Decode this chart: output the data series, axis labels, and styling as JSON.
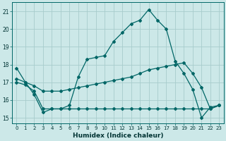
{
  "title": "",
  "xlabel": "Humidex (Indice chaleur)",
  "ylabel": "",
  "bg_color": "#cce8e8",
  "grid_color": "#a8cccc",
  "line_color": "#006666",
  "ylim": [
    14.7,
    21.5
  ],
  "xlim": [
    -0.5,
    23.5
  ],
  "yticks": [
    15,
    16,
    17,
    18,
    19,
    20,
    21
  ],
  "xticks": [
    0,
    1,
    2,
    3,
    4,
    5,
    6,
    7,
    8,
    9,
    10,
    11,
    12,
    13,
    14,
    15,
    16,
    17,
    18,
    19,
    20,
    21,
    22,
    23
  ],
  "line1_x": [
    0,
    1,
    2,
    3,
    4,
    5,
    6,
    7,
    8,
    9,
    10,
    11,
    12,
    13,
    14,
    15,
    16,
    17,
    18,
    19,
    20,
    21,
    22,
    23
  ],
  "line1_y": [
    17.8,
    17.0,
    16.3,
    15.3,
    15.5,
    15.5,
    15.7,
    17.3,
    18.3,
    18.4,
    18.5,
    19.3,
    19.8,
    20.3,
    20.5,
    21.1,
    20.5,
    20.0,
    18.2,
    17.5,
    16.6,
    15.0,
    15.6,
    15.7
  ],
  "line2_x": [
    0,
    1,
    2,
    3,
    4,
    5,
    6,
    7,
    8,
    9,
    10,
    11,
    12,
    13,
    14,
    15,
    16,
    17,
    18,
    19,
    20,
    21,
    22,
    23
  ],
  "line2_y": [
    17.0,
    16.85,
    16.5,
    15.5,
    15.5,
    15.5,
    15.5,
    15.5,
    15.5,
    15.5,
    15.5,
    15.5,
    15.5,
    15.5,
    15.5,
    15.5,
    15.5,
    15.5,
    15.5,
    15.5,
    15.5,
    15.5,
    15.5,
    15.7
  ],
  "line3_x": [
    0,
    1,
    2,
    3,
    4,
    5,
    6,
    7,
    8,
    9,
    10,
    11,
    12,
    13,
    14,
    15,
    16,
    17,
    18,
    19,
    20,
    21,
    22,
    23
  ],
  "line3_y": [
    17.2,
    17.0,
    16.8,
    16.5,
    16.5,
    16.5,
    16.6,
    16.7,
    16.8,
    16.9,
    17.0,
    17.1,
    17.2,
    17.3,
    17.5,
    17.7,
    17.8,
    17.9,
    18.0,
    18.1,
    17.5,
    16.7,
    15.5,
    15.7
  ]
}
